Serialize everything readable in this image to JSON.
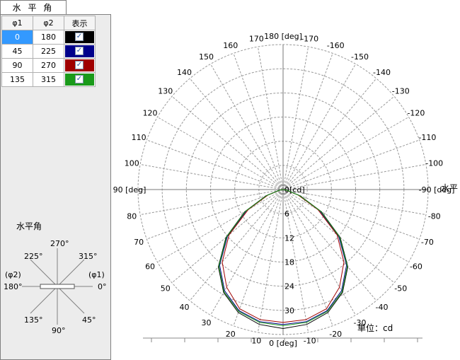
{
  "tab": {
    "label": "水 平 角"
  },
  "table": {
    "headers": [
      "φ1",
      "φ2",
      "表示"
    ],
    "rows": [
      {
        "phi1": "0",
        "phi2": "180",
        "color": "#000000",
        "checked": "✓"
      },
      {
        "phi1": "45",
        "phi2": "225",
        "color": "#00008b",
        "checked": "✓"
      },
      {
        "phi1": "90",
        "phi2": "270",
        "color": "#a00000",
        "checked": "✓"
      },
      {
        "phi1": "135",
        "phi2": "315",
        "color": "#1a9a1a",
        "checked": "✓"
      }
    ]
  },
  "legend": {
    "title": "水平角",
    "top": "270°",
    "top_left": "225°",
    "top_right": "315°",
    "left_phi": "(φ2)",
    "right_phi": "(φ1)",
    "left_deg": "180°",
    "right_deg": "0°",
    "bottom_left": "135°",
    "bottom_right": "45°",
    "bottom": "90°"
  },
  "chart_data": {
    "type": "polar",
    "title_right": "水平",
    "unit_label": "単位：cd",
    "radial_ticks": [
      "0[cd]",
      "6",
      "12",
      "18",
      "24",
      "30"
    ],
    "radial_max": 36,
    "angle_labels": [
      "-170",
      "180 [deg]",
      "170",
      "-160",
      "160",
      "-150",
      "150",
      "-140",
      "140",
      "-130",
      "130",
      "-120",
      "120",
      "-110",
      "110",
      "-100",
      "100",
      "-90 [deg]",
      "90 [deg]",
      "-80",
      "80",
      "-70",
      "70",
      "-60",
      "60",
      "-50",
      "50",
      "-40",
      "40",
      "-30",
      "30",
      "-20",
      "20",
      "-10",
      "10",
      "0 [deg]"
    ],
    "series": [
      {
        "color": "#000000",
        "angles": [
          0,
          10,
          20,
          30,
          40,
          50,
          60,
          70,
          80,
          90
        ],
        "values": [
          34.5,
          34.0,
          32.5,
          29.5,
          25.0,
          18.5,
          11.0,
          4.5,
          1.0,
          0
        ]
      },
      {
        "color": "#00008b",
        "angles": [
          0,
          10,
          20,
          30,
          40,
          50,
          60,
          70,
          80,
          90
        ],
        "values": [
          33.5,
          33.3,
          32.0,
          29.0,
          24.5,
          18.0,
          10.5,
          4.2,
          0.9,
          0
        ]
      },
      {
        "color": "#a00000",
        "angles": [
          0,
          10,
          20,
          30,
          40,
          50,
          60,
          70,
          80,
          90
        ],
        "values": [
          33.0,
          32.8,
          31.5,
          28.0,
          23.5,
          17.5,
          10.0,
          4.0,
          0.8,
          0
        ]
      },
      {
        "color": "#1a9a1a",
        "angles": [
          0,
          10,
          20,
          30,
          40,
          50,
          60,
          70,
          80,
          90
        ],
        "values": [
          33.8,
          33.5,
          32.2,
          29.3,
          24.8,
          18.3,
          10.8,
          4.3,
          0.9,
          0
        ]
      }
    ]
  }
}
